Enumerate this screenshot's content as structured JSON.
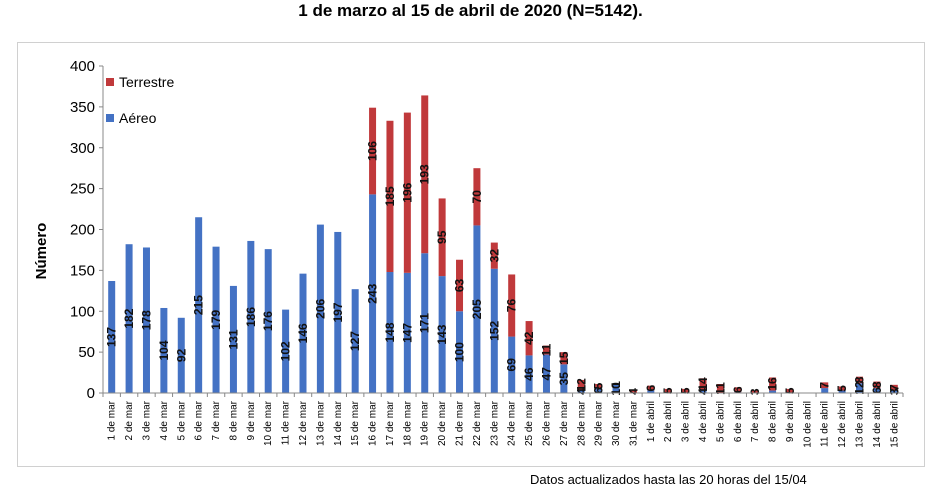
{
  "title": "1 de marzo al 15 de abril de 2020 (N=5142).",
  "footnote": "Datos actualizados hasta las 20 horas del 15/04",
  "chart_data": {
    "type": "bar",
    "stacked": true,
    "title": "1 de marzo al 15 de abril de 2020 (N=5142).",
    "xlabel": "",
    "ylabel": "Número",
    "ylim": [
      0,
      400
    ],
    "yticks": [
      0,
      50,
      100,
      150,
      200,
      250,
      300,
      350,
      400
    ],
    "grid": false,
    "legend_position": "top-left",
    "categories": [
      "1 de mar",
      "2 de mar",
      "3 de mar",
      "4 de mar",
      "5 de mar",
      "6 de mar",
      "7 de mar",
      "8 de mar",
      "9 de mar",
      "10 de mar",
      "11 de mar",
      "12 de mar",
      "13 de mar",
      "14 de mar",
      "15 de mar",
      "16 de mar",
      "17 de mar",
      "18 de mar",
      "19 de mar",
      "20 de mar",
      "21 de mar",
      "22 de mar",
      "23 de mar",
      "24 de mar",
      "25 de mar",
      "26 de mar",
      "27 de mar",
      "28 de mar",
      "29 de mar",
      "30 de mar",
      "31 de mar",
      "1 de abril",
      "2 de abril",
      "3 de abril",
      "4 de abril",
      "5 de abril",
      "6 de abril",
      "7 de abril",
      "8 de abril",
      "9 de abril",
      "10 de abril",
      "11 de abril",
      "12 de abril",
      "13 de abril",
      "14 de abril",
      "15 de abril"
    ],
    "series": [
      {
        "name": "Aéreo",
        "color": "#4472C4",
        "values": [
          137,
          182,
          178,
          104,
          92,
          215,
          179,
          131,
          186,
          176,
          102,
          146,
          206,
          197,
          127,
          243,
          148,
          147,
          171,
          143,
          100,
          205,
          152,
          69,
          46,
          47,
          35,
          4,
          6,
          10,
          0,
          3,
          0,
          0,
          4,
          0,
          1,
          0,
          3,
          0,
          0,
          6,
          3,
          12,
          6,
          3
        ],
        "labels": [
          "137",
          "182",
          "178",
          "104",
          "92",
          "215",
          "179",
          "131",
          "186",
          "176",
          "102",
          "146",
          "206",
          "197",
          "127",
          "243",
          "148",
          "147",
          "171",
          "143",
          "100",
          "205",
          "152",
          "69",
          "46",
          "47",
          "35",
          "4",
          "6",
          "10",
          "",
          "",
          "",
          "",
          "4",
          "",
          "",
          "",
          "",
          "",
          "",
          "",
          "",
          "12",
          "6",
          "3"
        ]
      },
      {
        "name": "Terrestre",
        "color": "#C0393B",
        "values": [
          0,
          0,
          0,
          0,
          0,
          0,
          0,
          0,
          0,
          0,
          0,
          0,
          0,
          0,
          0,
          106,
          185,
          196,
          193,
          95,
          63,
          70,
          32,
          76,
          42,
          11,
          15,
          12,
          5,
          1,
          4,
          6,
          5,
          5,
          14,
          11,
          6,
          3,
          16,
          5,
          0,
          7,
          5,
          8,
          8,
          7
        ],
        "labels": [
          "",
          "",
          "",
          "",
          "",
          "",
          "",
          "",
          "",
          "",
          "",
          "",
          "",
          "",
          "",
          "106",
          "185",
          "196",
          "193",
          "95",
          "63",
          "70",
          "32",
          "76",
          "42",
          "11",
          "15",
          "12",
          "5",
          "1",
          "4",
          "6",
          "5",
          "5",
          "14",
          "11",
          "6",
          "3",
          "16",
          "5",
          "",
          "7",
          "5",
          "8",
          "8",
          "7"
        ]
      }
    ]
  }
}
